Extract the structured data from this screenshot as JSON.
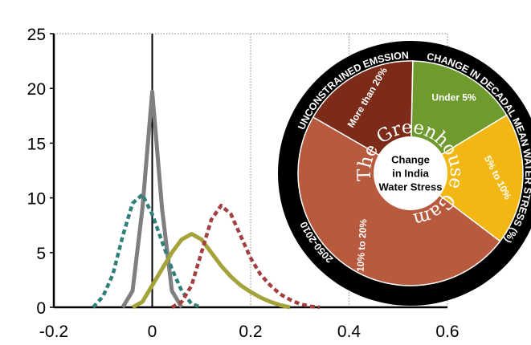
{
  "chart_data": [
    {
      "type": "line",
      "x": [
        -0.12,
        -0.1,
        -0.08,
        -0.06,
        -0.04,
        -0.02,
        0,
        0.02,
        0.04,
        0.06,
        0.08,
        0.1,
        0.12,
        0.14,
        0.16,
        0.18,
        0.2,
        0.22,
        0.24,
        0.26,
        0.28,
        0.3,
        0.32,
        0.34
      ],
      "series": [
        {
          "color": "#7f7f7f",
          "dash": false,
          "values": [
            null,
            null,
            null,
            0,
            1.5,
            9,
            19.7,
            9,
            1.5,
            0,
            null,
            null,
            null,
            null,
            null,
            null,
            null,
            null,
            null,
            null,
            null,
            null,
            null,
            null
          ]
        },
        {
          "color": "#2f7f7a",
          "dash": true,
          "values": [
            0,
            1,
            3,
            6.5,
            9.5,
            10.3,
            8.5,
            6,
            3.5,
            1.5,
            0.3,
            0,
            null,
            null,
            null,
            null,
            null,
            null,
            null,
            null,
            null,
            null,
            null,
            null
          ]
        },
        {
          "color": "#a3a33a",
          "dash": false,
          "values": [
            null,
            null,
            null,
            null,
            0,
            0.5,
            2,
            3.5,
            5,
            6.2,
            6.7,
            6.2,
            5,
            3.8,
            2.8,
            2,
            1.4,
            0.9,
            0.5,
            0.2,
            0,
            null,
            null,
            null
          ]
        },
        {
          "color": "#a33f3f",
          "dash": true,
          "values": [
            null,
            null,
            null,
            null,
            null,
            null,
            null,
            null,
            0,
            0.5,
            2,
            5,
            8,
            9.3,
            8.5,
            6.5,
            4.5,
            3,
            2,
            1.2,
            0.7,
            0.3,
            0.1,
            0
          ]
        }
      ],
      "xlim": [
        -0.2,
        0.6
      ],
      "xticks": [
        -0.2,
        0,
        0.2,
        0.4,
        0.6
      ],
      "ylim": [
        0,
        25
      ],
      "yticks": [
        0,
        5,
        10,
        15,
        20,
        25
      ],
      "grid": "x",
      "vline": 0
    },
    {
      "type": "pie",
      "title": "The Greenhouse Gamble",
      "center_label": [
        "Change",
        "in India",
        "Water Stress"
      ],
      "ring_labels": [
        "UNCONSTRAINED EMSSIONS",
        "CHANGE IN DECADAL MEAN WATER STRESS (%)",
        "2050-2010"
      ],
      "categories": [
        "More than 20%",
        "Under 5%",
        "5% to 10%",
        "10% to 20%"
      ],
      "values": [
        17,
        16,
        19,
        48
      ],
      "colors": [
        "#7b2b17",
        "#6e9a2e",
        "#f2b713",
        "#b85a3e"
      ]
    }
  ]
}
